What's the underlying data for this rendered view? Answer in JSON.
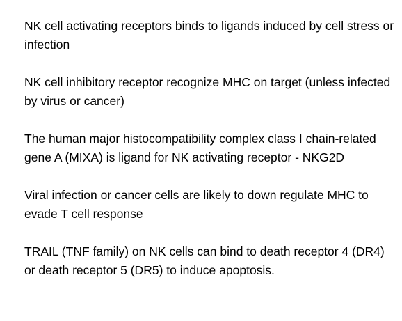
{
  "paragraphs": [
    "NK cell activating receptors binds to ligands induced by cell stress or infection",
    "NK cell inhibitory receptor recognize MHC on target (unless infected by virus or cancer)",
    "The human major histocompatibility complex class I chain-related gene A (MIXA) is ligand for NK activating receptor - NKG2D",
    "Viral infection or cancer cells are likely to down regulate MHC to evade T cell response",
    "TRAIL (TNF family) on NK cells can bind to death receptor 4 (DR4) or death receptor 5 (DR5) to induce apoptosis."
  ]
}
